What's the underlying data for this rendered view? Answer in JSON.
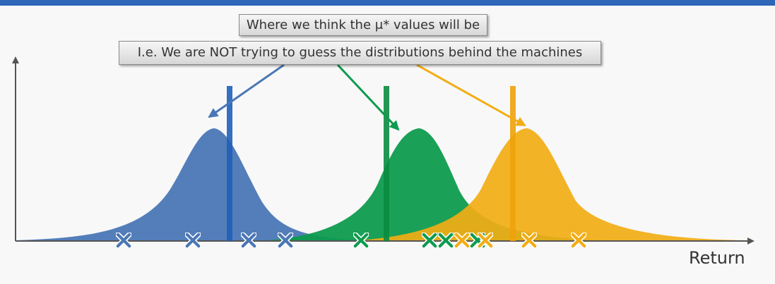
{
  "callouts": {
    "primary": "Where we think the μ* values will be",
    "secondary": "I.e. We are NOT trying to guess the distributions behind the machines"
  },
  "axis": {
    "x_label": "Return"
  },
  "colors": {
    "blue": "#4a77b5",
    "blue_line": "#1f5fb8",
    "green": "#0e9b4e",
    "green_line": "#0a8b40",
    "yellow": "#f2ad13",
    "yellow_line": "#efa20a",
    "axis": "#555555"
  }
}
